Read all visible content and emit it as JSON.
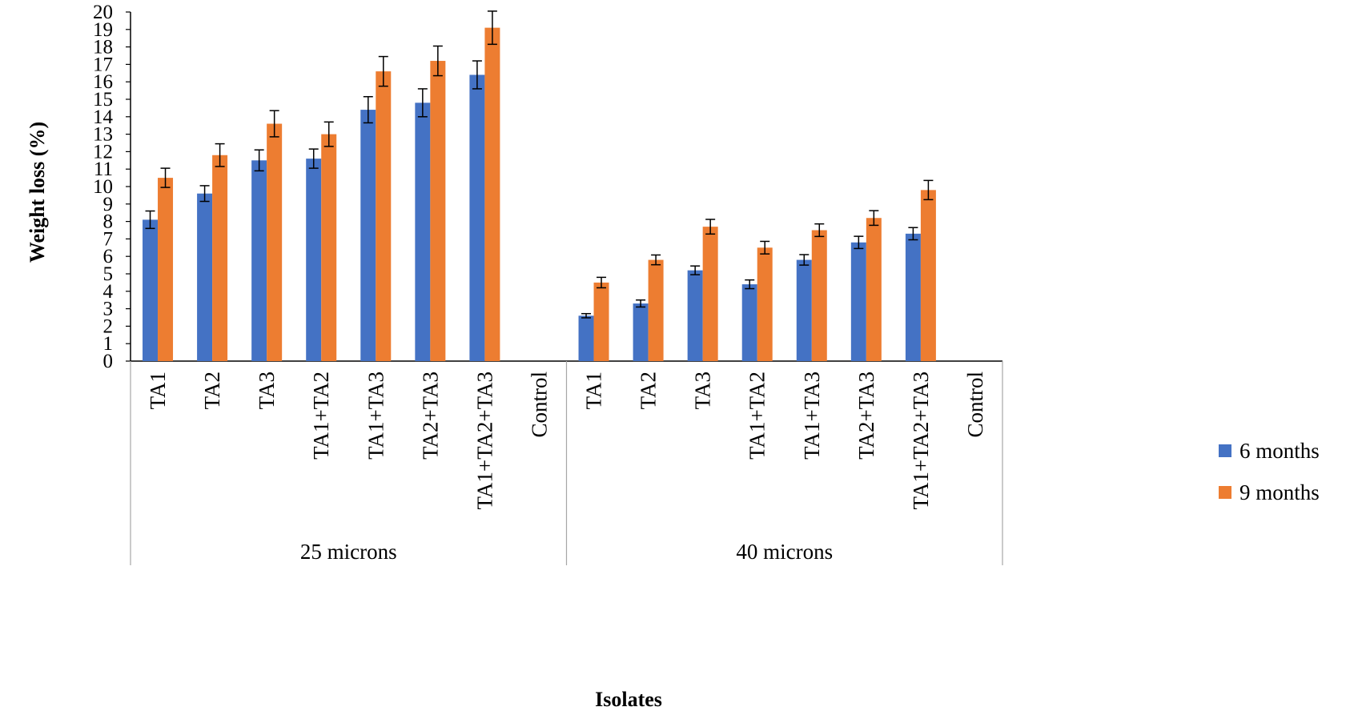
{
  "chart_data": {
    "type": "bar",
    "title": "",
    "ylabel": "Weight loss (%)",
    "xlabel": "Isolates",
    "ylim": [
      0,
      20
    ],
    "yticks": [
      "0",
      "1",
      "2",
      "3",
      "4",
      "5",
      "6",
      "7",
      "8",
      "9",
      "10",
      "11",
      "12",
      "13",
      "14",
      "15",
      "16",
      "17",
      "18",
      "19",
      "20"
    ],
    "groups": [
      {
        "label": "25 microns",
        "categories": [
          "TA1",
          "TA2",
          "TA3",
          "TA1+TA2",
          "TA1+TA3",
          "TA2+TA3",
          "TA1+TA2+TA3",
          "Control"
        ]
      },
      {
        "label": "40 microns",
        "categories": [
          "TA1",
          "TA2",
          "TA3",
          "TA1+TA2",
          "TA1+TA3",
          "TA2+TA3",
          "TA1+TA2+TA3",
          "Control"
        ]
      }
    ],
    "series": [
      {
        "name": "6 months",
        "color": "#4472C4",
        "values": [
          8.1,
          9.6,
          11.5,
          11.6,
          14.4,
          14.8,
          16.4,
          0,
          2.6,
          3.3,
          5.2,
          4.4,
          5.8,
          6.8,
          7.3,
          0
        ],
        "errors": [
          0.5,
          0.45,
          0.6,
          0.55,
          0.75,
          0.8,
          0.8,
          0,
          0.12,
          0.2,
          0.25,
          0.25,
          0.3,
          0.35,
          0.35,
          0
        ]
      },
      {
        "name": "9 months",
        "color": "#ED7D31",
        "values": [
          10.5,
          11.8,
          13.6,
          13.0,
          16.6,
          17.2,
          19.1,
          0,
          4.5,
          5.8,
          7.7,
          6.5,
          7.5,
          8.2,
          9.8,
          0
        ],
        "errors": [
          0.55,
          0.65,
          0.75,
          0.7,
          0.85,
          0.85,
          0.95,
          0,
          0.3,
          0.28,
          0.42,
          0.36,
          0.36,
          0.42,
          0.55,
          0
        ]
      }
    ],
    "legend_position": "right",
    "grid": false
  }
}
